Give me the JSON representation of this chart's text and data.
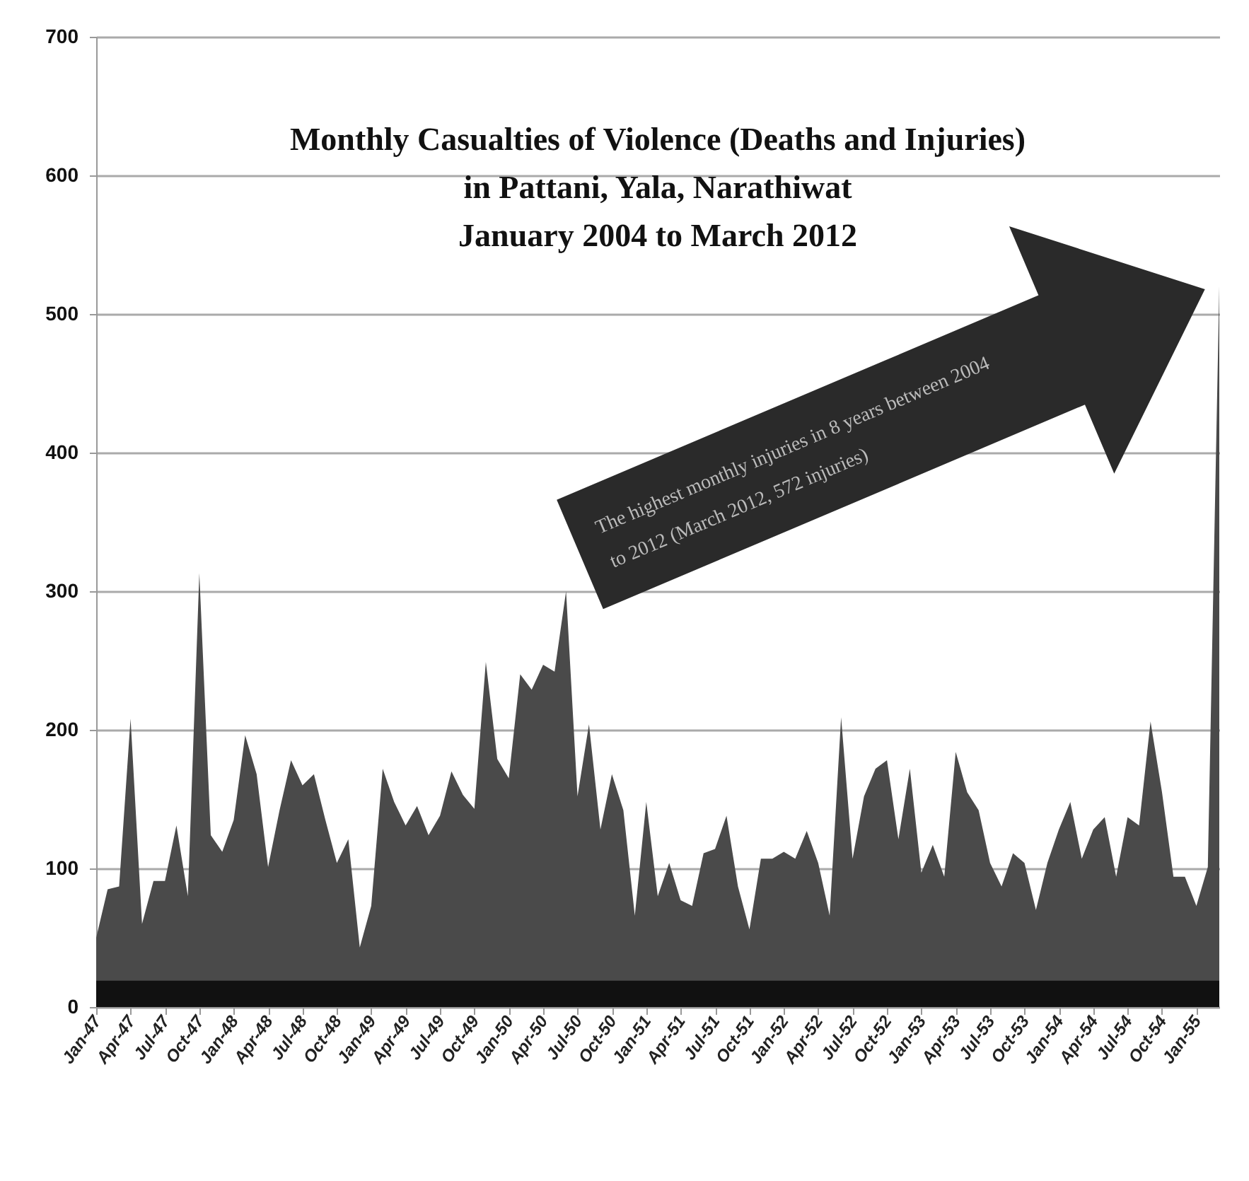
{
  "chart_data": {
    "type": "area",
    "title": "Monthly Casualties of Violence (Deaths and Injuries)\nin Pattani, Yala, Narathiwat\nJanuary 2004 to March 2012",
    "categories": [
      "Jan-47",
      null,
      null,
      "Apr-47",
      null,
      null,
      "Jul-47",
      null,
      null,
      "Oct-47",
      null,
      null,
      "Jan-48",
      null,
      null,
      "Apr-48",
      null,
      null,
      "Jul-48",
      null,
      null,
      "Oct-48",
      null,
      null,
      "Jan-49",
      null,
      null,
      "Apr-49",
      null,
      null,
      "Jul-49",
      null,
      null,
      "Oct-49",
      null,
      null,
      "Jan-50",
      null,
      null,
      "Apr-50",
      null,
      null,
      "Jul-50",
      null,
      null,
      "Oct-50",
      null,
      null,
      "Jan-51",
      null,
      null,
      "Apr-51",
      null,
      null,
      "Jul-51",
      null,
      null,
      "Oct-51",
      null,
      null,
      "Jan-52",
      null,
      null,
      "Apr-52",
      null,
      null,
      "Jul-52",
      null,
      null,
      "Oct-52",
      null,
      null,
      "Jan-53",
      null,
      null,
      "Apr-53",
      null,
      null,
      "Jul-53",
      null,
      null,
      "Oct-53",
      null,
      null,
      "Jan-54",
      null,
      null,
      "Apr-54",
      null,
      null,
      "Jul-54",
      null,
      null,
      "Oct-54",
      null,
      null,
      "Jan-55",
      null,
      null
    ],
    "series": [
      {
        "color": "#4a4a4a",
        "values": [
          50,
          85,
          87,
          208,
          60,
          91,
          91,
          131,
          80,
          313,
          124,
          112,
          135,
          196,
          168,
          101,
          142,
          178,
          160,
          168,
          135,
          104,
          121,
          43,
          73,
          172,
          148,
          131,
          145,
          124,
          138,
          170,
          153,
          143,
          249,
          179,
          165,
          240,
          229,
          247,
          242,
          300,
          152,
          204,
          128,
          168,
          142,
          66,
          148,
          80,
          104,
          77,
          73,
          111,
          114,
          138,
          87,
          56,
          107,
          107,
          112,
          107,
          127,
          104,
          66,
          209,
          107,
          152,
          172,
          178,
          121,
          172,
          97,
          117,
          94,
          184,
          155,
          142,
          104,
          87,
          111,
          104,
          70,
          104,
          128,
          148,
          107,
          128,
          137,
          94,
          137,
          131,
          206,
          155,
          94,
          94,
          73,
          101,
          520
        ]
      },
      {
        "color": "#111111",
        "values": [
          19,
          19,
          19,
          19,
          19,
          19,
          19,
          19,
          19,
          19,
          19,
          19,
          19,
          19,
          19,
          19,
          19,
          19,
          19,
          19,
          19,
          19,
          19,
          19,
          19,
          19,
          19,
          19,
          19,
          19,
          19,
          19,
          19,
          19,
          19,
          19,
          19,
          19,
          19,
          19,
          19,
          19,
          19,
          19,
          19,
          19,
          19,
          19,
          19,
          19,
          19,
          19,
          19,
          19,
          19,
          19,
          19,
          19,
          19,
          19,
          19,
          19,
          19,
          19,
          19,
          19,
          19,
          19,
          19,
          19,
          19,
          19,
          19,
          19,
          19,
          19,
          19,
          19,
          19,
          19,
          19,
          19,
          19,
          19,
          19,
          19,
          19,
          19,
          19,
          19,
          19,
          19,
          19,
          19,
          19,
          19,
          19,
          19,
          19
        ]
      }
    ],
    "ylim": [
      0,
      700
    ],
    "yticks": [
      0,
      100,
      200,
      300,
      400,
      500,
      600,
      700
    ],
    "grid": "y",
    "annotations": [
      "The highest monthly injuries in 8 years between 2004 to 2012 (March 2012, 572 injuries)"
    ]
  }
}
